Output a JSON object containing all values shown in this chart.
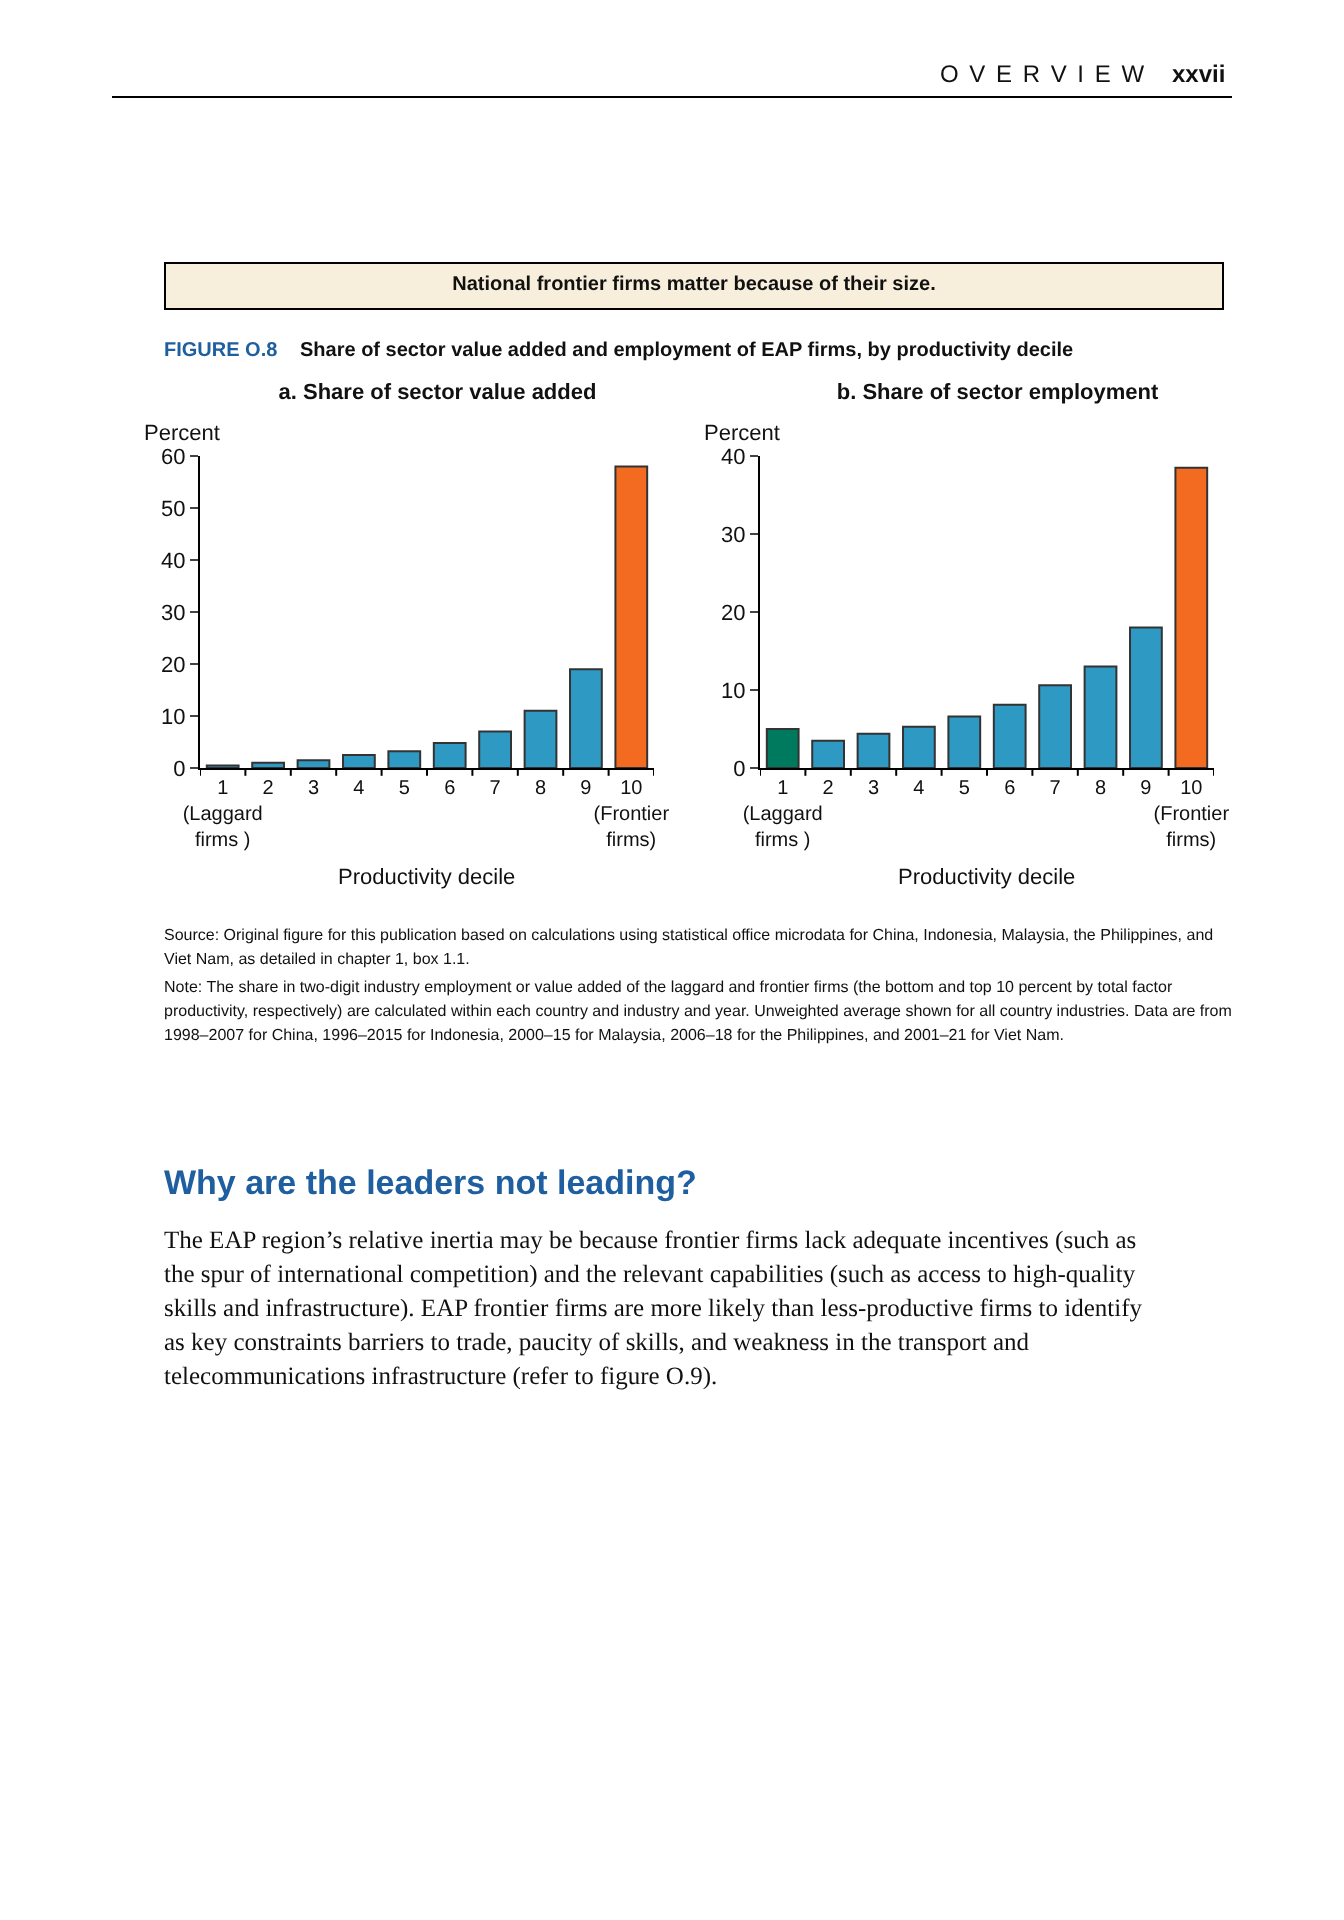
{
  "chart_data": [
    {
      "type": "bar",
      "title": "a. Share of sector value added",
      "ylabel": "Percent",
      "xlabel": "Productivity decile",
      "categories": [
        "1\n(Laggard\nfirms )",
        "2",
        "3",
        "4",
        "5",
        "6",
        "7",
        "8",
        "9",
        "10\n(Frontier\nfirms)"
      ],
      "values": [
        0.5,
        1,
        1.5,
        2.5,
        3.2,
        4.8,
        7,
        11,
        19,
        58
      ],
      "colors": [
        "#2e9ac4",
        "#2e9ac4",
        "#2e9ac4",
        "#2e9ac4",
        "#2e9ac4",
        "#2e9ac4",
        "#2e9ac4",
        "#2e9ac4",
        "#2e9ac4",
        "#f26b21"
      ],
      "ylim": [
        0,
        60
      ],
      "yticks": [
        0,
        10,
        20,
        30,
        40,
        50,
        60
      ],
      "grid": false,
      "annotations": [
        "O V E R V I E W",
        "xxvii",
        "National frontier firms matter because of their size.",
        "FIGURE O.8",
        "Share of sector value added and employment of EAP firms, by productivity decile"
      ]
    },
    {
      "type": "bar",
      "title": "b. Share of sector employment",
      "ylabel": "Percent",
      "xlabel": "Productivity decile",
      "categories": [
        "1\n(Laggard\nfirms )",
        "2",
        "3",
        "4",
        "5",
        "6",
        "7",
        "8",
        "9",
        "10\n(Frontier\nfirms)"
      ],
      "values": [
        5,
        3.5,
        4.4,
        5.3,
        6.6,
        8.1,
        10.6,
        13,
        18,
        38.5
      ],
      "colors": [
        "#007a5e",
        "#2e9ac4",
        "#2e9ac4",
        "#2e9ac4",
        "#2e9ac4",
        "#2e9ac4",
        "#2e9ac4",
        "#2e9ac4",
        "#2e9ac4",
        "#f26b21"
      ],
      "ylim": [
        0,
        40
      ],
      "yticks": [
        0,
        10,
        20,
        30,
        40
      ],
      "grid": false,
      "annotations": [
        "Source: Original figure for this publication based on calculations using statistical office microdata for China, Indonesia, Malaysia, the Philippines, and Viet Nam, as detailed in chapter 1, box 1.1.",
        "Note: The share in two-digit industry employment or value added of the laggard and frontier firms (the bottom and top 10 percent by total factor productivity, respectively) are calculated within each country and industry and year. Unweighted average shown for all country industries. Data are from 1998–2007 for China, 1996–2015 for Indonesia, 2000–15 for Malaysia, 2006–18 for the Philippines, and 2001–21 for Viet Nam.",
        "Why are the leaders not leading?",
        "The EAP region’s relative inertia may be because frontier firms lack adequate incentives (such as the spur of international competition) and the relevant capabilities (such as access to high-quality skills and infrastructure). EAP frontier firms are more likely than less-productive firms to identify as key constraints barriers to trade, paucity of skills, and weakness in the transport and telecommunications infrastructure (refer to figure O.9)."
      ]
    }
  ]
}
